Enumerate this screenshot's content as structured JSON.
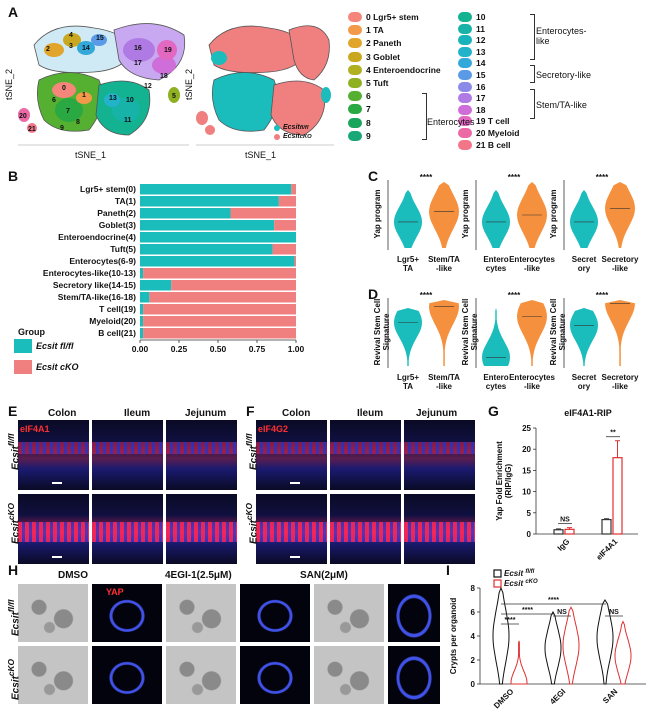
{
  "panel_labels": {
    "A": "A",
    "B": "B",
    "C": "C",
    "D": "D",
    "E": "E",
    "F": "F",
    "G": "G",
    "H": "H",
    "I": "I"
  },
  "panel_a": {
    "axis_x": "tSNE_1",
    "axis_y": "tSNE_2",
    "cluster_numbers": [
      "0",
      "1",
      "2",
      "3",
      "4",
      "5",
      "6",
      "7",
      "8",
      "9",
      "10",
      "11",
      "12",
      "13",
      "14",
      "15",
      "16",
      "17",
      "18",
      "19",
      "20",
      "21"
    ],
    "legend": [
      {
        "label": "0 Lgr5+ stem",
        "color": "#f4867c"
      },
      {
        "label": "1 TA",
        "color": "#f2994a"
      },
      {
        "label": "2 Paneth",
        "color": "#e0a52a"
      },
      {
        "label": "3 Goblet",
        "color": "#c9a820"
      },
      {
        "label": "4 Enteroendocrine",
        "color": "#b0b020"
      },
      {
        "label": "5 Tuft",
        "color": "#8fb021"
      },
      {
        "label": "6",
        "color": "#55b031"
      },
      {
        "label": "7",
        "color": "#2aa842"
      },
      {
        "label": "8",
        "color": "#1aa55c"
      },
      {
        "label": "9",
        "color": "#18a878"
      },
      {
        "label": "10",
        "color": "#13b392"
      },
      {
        "label": "11",
        "color": "#17b3a8"
      },
      {
        "label": "12",
        "color": "#17b3bb"
      },
      {
        "label": "13",
        "color": "#22b2c9"
      },
      {
        "label": "14",
        "color": "#32a8db"
      },
      {
        "label": "15",
        "color": "#5a9ae6"
      },
      {
        "label": "16",
        "color": "#8c8ae8"
      },
      {
        "label": "17",
        "color": "#b07ae4"
      },
      {
        "label": "18",
        "color": "#cf6ed8"
      },
      {
        "label": "19 T cell",
        "color": "#e268c2"
      },
      {
        "label": "20 Myeloid",
        "color": "#eb6aa6"
      },
      {
        "label": "21 B cell",
        "color": "#f27588"
      }
    ],
    "groups": {
      "enterocytes": "Enterocytes",
      "enterocytes_like": "Enterocytes-\nlike",
      "secretory_like": "Secretory-like",
      "stem_ta_like": "Stem/TA-like"
    },
    "genotype_legend": [
      {
        "label": "Ecsit",
        "sup": "fl/fl",
        "color": "#1bbcbc"
      },
      {
        "label": "Ecsit",
        "sup": "cKO",
        "color": "#f07f7f"
      }
    ]
  },
  "chart_data": [
    {
      "panel": "B",
      "type": "bar",
      "orientation": "horizontal-stacked",
      "categories": [
        "Lgr5+ stem(0)",
        "TA(1)",
        "Paneth(2)",
        "Goblet(3)",
        "Enteroendocrine(4)",
        "Tuft(5)",
        "Enterocytes(6-9)",
        "Enterocytes-like(10-13)",
        "Secretory like(14-15)",
        "Stem/TA-like(16-18)",
        "T cell(19)",
        "Myeloid(20)",
        "B cell(21)"
      ],
      "series": [
        {
          "name": "Ecsit fl/fl",
          "values": [
            0.97,
            0.89,
            0.58,
            0.86,
            1.0,
            0.85,
            0.99,
            0.02,
            0.2,
            0.06,
            0.02,
            0.02,
            0.02
          ]
        },
        {
          "name": "Ecsit cKO",
          "values": [
            0.03,
            0.11,
            0.42,
            0.14,
            0.0,
            0.15,
            0.01,
            0.98,
            0.8,
            0.94,
            0.98,
            0.98,
            0.98
          ]
        }
      ],
      "xlim": [
        0,
        1
      ],
      "xticks": [
        "0.00",
        "0.25",
        "0.50",
        "0.75",
        "1.00"
      ],
      "legend_title": "Group",
      "colors": [
        "#1bbcbc",
        "#f07f7f"
      ]
    },
    {
      "panel": "C",
      "type": "violin",
      "ylabel": "Yap program",
      "pairs": [
        {
          "left": "Lgr5+\nTA",
          "right": "Stem/TA\n-like",
          "sig": "****"
        },
        {
          "left": "Entero\ncytes",
          "right": "Enterocytes\n-like",
          "sig": "****"
        },
        {
          "left": "Secret\nory",
          "right": "Secretory\n-like",
          "sig": "****"
        }
      ]
    },
    {
      "panel": "D",
      "type": "violin",
      "ylabel": "Revival Stem Cell\nSignature",
      "pairs": [
        {
          "left": "Lgr5+\nTA",
          "right": "Stem/TA\n-like",
          "sig": "****"
        },
        {
          "left": "Entero\ncytes",
          "right": "Enterocytes\n-like",
          "sig": "****"
        },
        {
          "left": "Secret\nory",
          "right": "Secretory\n-like",
          "sig": "****"
        }
      ]
    },
    {
      "panel": "G",
      "type": "bar",
      "title": "eIF4A1-RIP",
      "ylabel": "Yap Fold Enrichment\n(RIP/IgG)",
      "categories": [
        "IgG",
        "eIF4A1"
      ],
      "series": [
        {
          "name": "Ecsit fl/fl",
          "values": [
            1.0,
            3.4
          ]
        },
        {
          "name": "Ecsit cKO",
          "values": [
            1.1,
            18.0
          ]
        }
      ],
      "errors": [
        [
          0.2,
          0.4
        ],
        [
          0.2,
          4.0
        ]
      ],
      "ylim": [
        0,
        25
      ],
      "yticks": [
        "0",
        "5",
        "10",
        "15",
        "20",
        "25"
      ],
      "sig": [
        "NS",
        "**"
      ]
    },
    {
      "panel": "I",
      "type": "violin",
      "ylabel": "Crypts per organoid",
      "categories": [
        "DMSO",
        "4EGI",
        "SAN"
      ],
      "series": [
        {
          "name": "Ecsit fl/fl"
        },
        {
          "name": "Ecsit cKO"
        }
      ],
      "ylim": [
        0,
        8
      ],
      "yticks": [
        "0",
        "2",
        "4",
        "6",
        "8"
      ],
      "sig": [
        "****",
        "****",
        "****",
        "NS",
        "NS"
      ],
      "legend": [
        {
          "label": "Ecsit",
          "sup": "fl/fl",
          "color": "#111111"
        },
        {
          "label": "Ecsit",
          "sup": "cKO",
          "color": "#e03030"
        }
      ]
    }
  ],
  "panel_e": {
    "columns": [
      "Colon",
      "Ileum",
      "Jejunum"
    ],
    "stain": "eIF4A1",
    "rows": [
      {
        "label": "Ecsit",
        "sup": "fl/fl"
      },
      {
        "label": "Ecsit",
        "sup": "cKO"
      }
    ]
  },
  "panel_f": {
    "columns": [
      "Colon",
      "Ileum",
      "Jejunum"
    ],
    "stain": "eIF4G2",
    "rows": [
      {
        "label": "Ecsit",
        "sup": "fl/fl"
      },
      {
        "label": "Ecsit",
        "sup": "cKO"
      }
    ]
  },
  "panel_h": {
    "columns": [
      "DMSO",
      "4EGI-1(2.5μM)",
      "SAN(2μM)"
    ],
    "stain": "YAP",
    "rows": [
      {
        "label": "Ecsit",
        "sup": "fl/fl"
      },
      {
        "label": "Ecsit",
        "sup": "cKO"
      }
    ]
  }
}
